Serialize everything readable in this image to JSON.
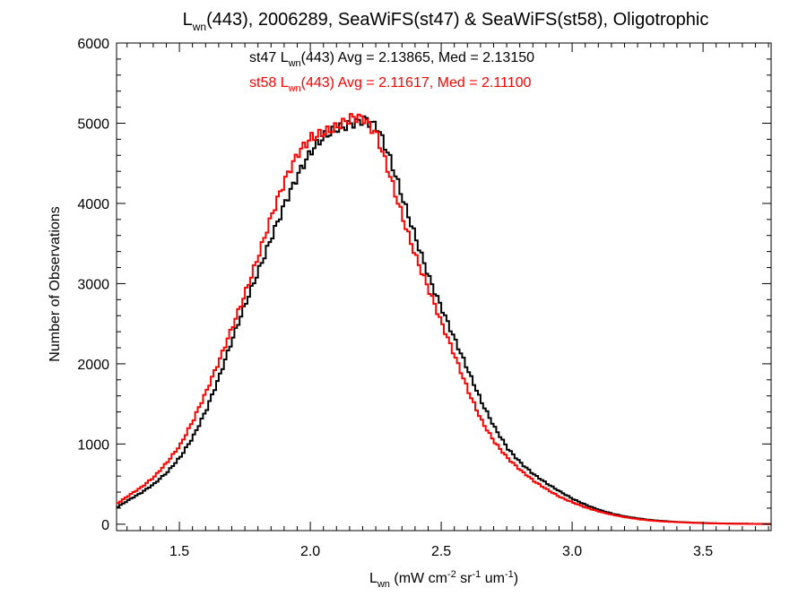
{
  "chart_data": {
    "type": "line",
    "title": {
      "main": "L",
      "sub": "wn",
      "rest": "(443), 2006289, SeaWiFS(st47) & SeaWiFS(st58), Oligotrophic"
    },
    "xlabel": {
      "main": "L",
      "sub": "wn",
      "rest1": " (mW cm",
      "sup1": "-2",
      "rest2": " sr",
      "sup2": "-1",
      "rest3": " um",
      "sup3": "-1",
      "rest4": ")"
    },
    "ylabel": "Number of Observations",
    "xlim": [
      1.26,
      3.76
    ],
    "ylim": [
      -80,
      6000
    ],
    "x_ticks": [
      "1.5",
      "2.0",
      "2.5",
      "3.0",
      "3.5"
    ],
    "y_ticks": [
      "0",
      "1000",
      "2000",
      "3000",
      "4000",
      "5000",
      "6000"
    ],
    "legend": [
      {
        "prefix": "st47 L",
        "sub": "wn",
        "rest": "(443) Avg = 2.13865, Med = 2.13150",
        "color": "#000000"
      },
      {
        "prefix": "st58 L",
        "sub": "wn",
        "rest": "(443) Avg = 2.11617, Med = 2.11100",
        "color": "#ff0000"
      }
    ],
    "series": [
      {
        "color": "#000000",
        "x": [
          1.26,
          1.3,
          1.35,
          1.4,
          1.45,
          1.5,
          1.55,
          1.6,
          1.65,
          1.7,
          1.75,
          1.8,
          1.85,
          1.9,
          1.95,
          2.0,
          2.05,
          2.1,
          2.15,
          2.2,
          2.25,
          2.3,
          2.35,
          2.4,
          2.45,
          2.5,
          2.55,
          2.6,
          2.65,
          2.7,
          2.75,
          2.8,
          2.85,
          2.9,
          2.95,
          3.0,
          3.05,
          3.1,
          3.15,
          3.2,
          3.25,
          3.3,
          3.35,
          3.4,
          3.45,
          3.5,
          3.55,
          3.6,
          3.65,
          3.7,
          3.75
        ],
        "y": [
          220,
          300,
          390,
          500,
          650,
          850,
          1120,
          1450,
          1850,
          2300,
          2750,
          3200,
          3650,
          4050,
          4350,
          4600,
          4800,
          4950,
          5050,
          5100,
          4950,
          4500,
          4000,
          3550,
          3100,
          2700,
          2280,
          1880,
          1500,
          1200,
          950,
          770,
          620,
          500,
          400,
          310,
          240,
          180,
          130,
          95,
          70,
          50,
          38,
          28,
          20,
          15,
          10,
          8,
          6,
          4,
          3
        ]
      },
      {
        "color": "#ff0000",
        "x": [
          1.26,
          1.3,
          1.35,
          1.4,
          1.45,
          1.5,
          1.55,
          1.6,
          1.65,
          1.7,
          1.75,
          1.8,
          1.85,
          1.9,
          1.95,
          2.0,
          2.05,
          2.1,
          2.15,
          2.2,
          2.25,
          2.3,
          2.35,
          2.4,
          2.45,
          2.5,
          2.55,
          2.6,
          2.65,
          2.7,
          2.75,
          2.8,
          2.85,
          2.9,
          2.95,
          3.0,
          3.05,
          3.1,
          3.15,
          3.2,
          3.25,
          3.3,
          3.35,
          3.4,
          3.45,
          3.5,
          3.55,
          3.6,
          3.65,
          3.7,
          3.75
        ],
        "y": [
          260,
          350,
          460,
          600,
          790,
          1000,
          1300,
          1650,
          2050,
          2500,
          2950,
          3400,
          3850,
          4250,
          4600,
          4850,
          4950,
          5000,
          5050,
          5000,
          4800,
          4350,
          3850,
          3350,
          2900,
          2450,
          2050,
          1650,
          1300,
          1030,
          820,
          660,
          530,
          430,
          340,
          270,
          205,
          155,
          115,
          85,
          62,
          45,
          33,
          25,
          18,
          13,
          9,
          7,
          5,
          3,
          2
        ]
      }
    ]
  }
}
